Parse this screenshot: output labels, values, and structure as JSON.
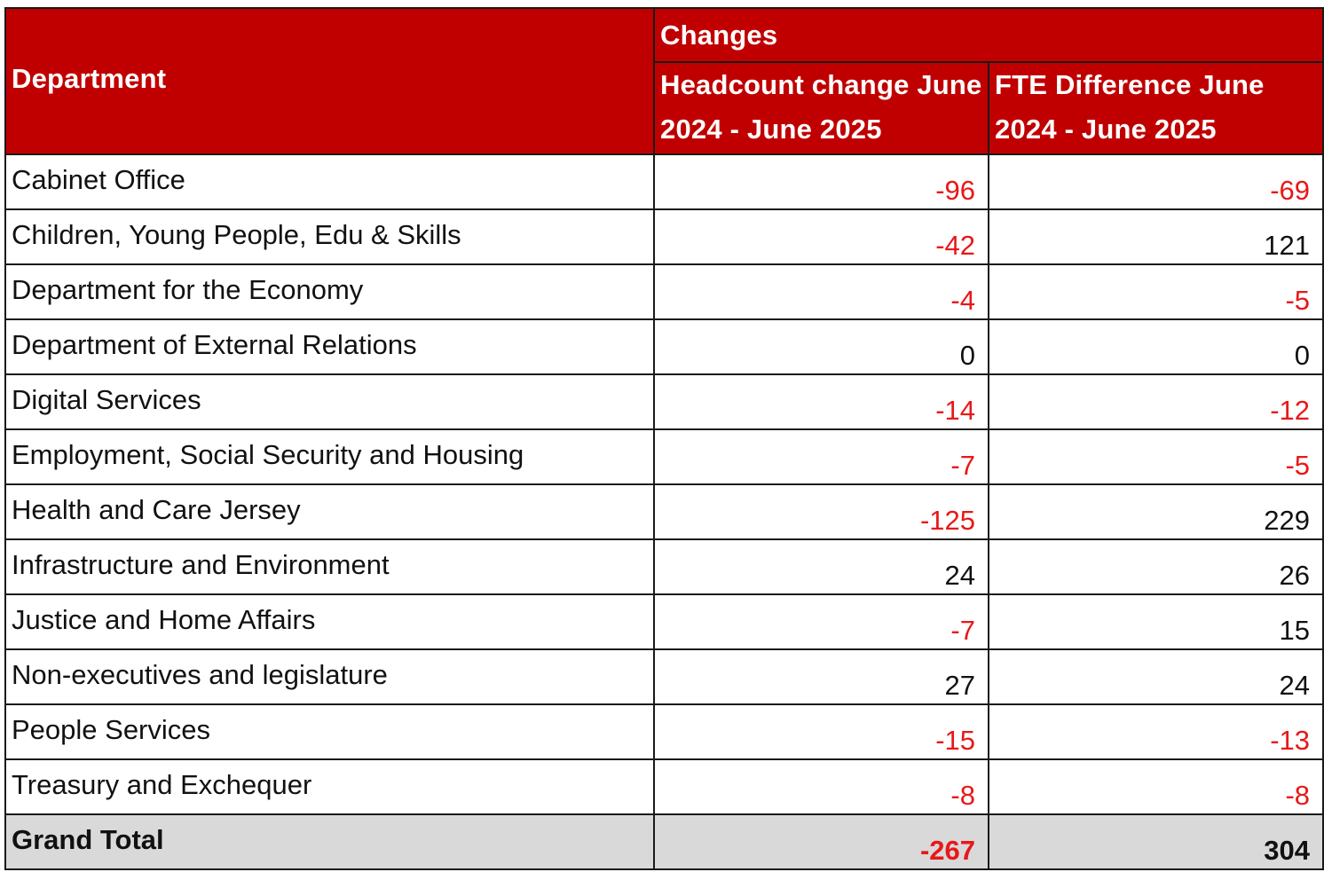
{
  "table": {
    "department_header": "Department",
    "group_header": "Changes",
    "headcount_header": "Headcount change June 2024 - June 2025",
    "fte_header": "FTE Difference June 2024 - June 2025",
    "rows": [
      {
        "department": "Cabinet Office",
        "headcount": "-96",
        "fte": "-69"
      },
      {
        "department": "Children, Young People, Edu & Skills",
        "headcount": "-42",
        "fte": "121"
      },
      {
        "department": "Department for the Economy",
        "headcount": "-4",
        "fte": "-5"
      },
      {
        "department": "Department of External Relations",
        "headcount": "0",
        "fte": "0"
      },
      {
        "department": "Digital Services",
        "headcount": "-14",
        "fte": "-12"
      },
      {
        "department": "Employment, Social Security and Housing",
        "headcount": "-7",
        "fte": "-5"
      },
      {
        "department": "Health and Care Jersey",
        "headcount": "-125",
        "fte": "229"
      },
      {
        "department": "Infrastructure and Environment",
        "headcount": "24",
        "fte": "26"
      },
      {
        "department": "Justice and Home Affairs",
        "headcount": "-7",
        "fte": "15"
      },
      {
        "department": "Non-executives and legislature",
        "headcount": "27",
        "fte": "24"
      },
      {
        "department": "People Services",
        "headcount": "-15",
        "fte": "-13"
      },
      {
        "department": "Treasury and Exchequer",
        "headcount": "-8",
        "fte": "-8"
      }
    ],
    "total": {
      "label": "Grand Total",
      "headcount": "-267",
      "fte": "304"
    }
  },
  "colors": {
    "header_background": "#c00000",
    "header_text": "#ffffff",
    "negative_value": "#e81818",
    "total_background": "#d9d9d9"
  }
}
